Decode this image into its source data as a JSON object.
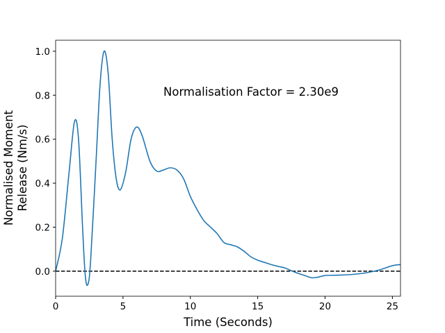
{
  "chart_data": {
    "type": "line",
    "xlabel": "Time (Seconds)",
    "ylabel": [
      "Normalised Moment",
      "Release (Nm/s)"
    ],
    "annotation": "Normalisation Factor = 2.30e9",
    "x": [
      0,
      0.5,
      1.0,
      1.4,
      1.7,
      2.0,
      2.2,
      2.4,
      2.6,
      3.0,
      3.3,
      3.6,
      3.9,
      4.2,
      4.5,
      4.8,
      5.2,
      5.6,
      6.0,
      6.4,
      7.0,
      7.5,
      8.0,
      8.5,
      9.0,
      9.5,
      10,
      10.5,
      11,
      11.5,
      12,
      12.5,
      13,
      13.5,
      14,
      14.5,
      15,
      15.5,
      16,
      16.5,
      17,
      17.5,
      18,
      18.5,
      19,
      19.5,
      20,
      21,
      22,
      23,
      24,
      25,
      25.6
    ],
    "series": [
      {
        "name": "moment release",
        "color": "#1f77b4",
        "values": [
          0,
          0.15,
          0.45,
          0.68,
          0.6,
          0.2,
          -0.02,
          -0.06,
          0.05,
          0.5,
          0.85,
          1.0,
          0.9,
          0.6,
          0.42,
          0.37,
          0.45,
          0.6,
          0.655,
          0.62,
          0.5,
          0.455,
          0.46,
          0.47,
          0.46,
          0.42,
          0.34,
          0.28,
          0.23,
          0.2,
          0.17,
          0.13,
          0.12,
          0.11,
          0.09,
          0.065,
          0.05,
          0.04,
          0.03,
          0.022,
          0.015,
          0.002,
          -0.01,
          -0.02,
          -0.03,
          -0.027,
          -0.02,
          -0.018,
          -0.015,
          -0.008,
          0.005,
          0.025,
          0.03
        ]
      }
    ],
    "hline": 0,
    "xlim": [
      0,
      25.6
    ],
    "ylim": [
      -0.114,
      1.05
    ],
    "xticks": [
      0,
      5,
      10,
      15,
      20,
      25
    ],
    "yticks": [
      {
        "value": 0,
        "label": "0.0"
      },
      0.2,
      0.4,
      0.6,
      0.8,
      {
        "value": 1,
        "label": "1.0"
      }
    ],
    "grid": false
  }
}
